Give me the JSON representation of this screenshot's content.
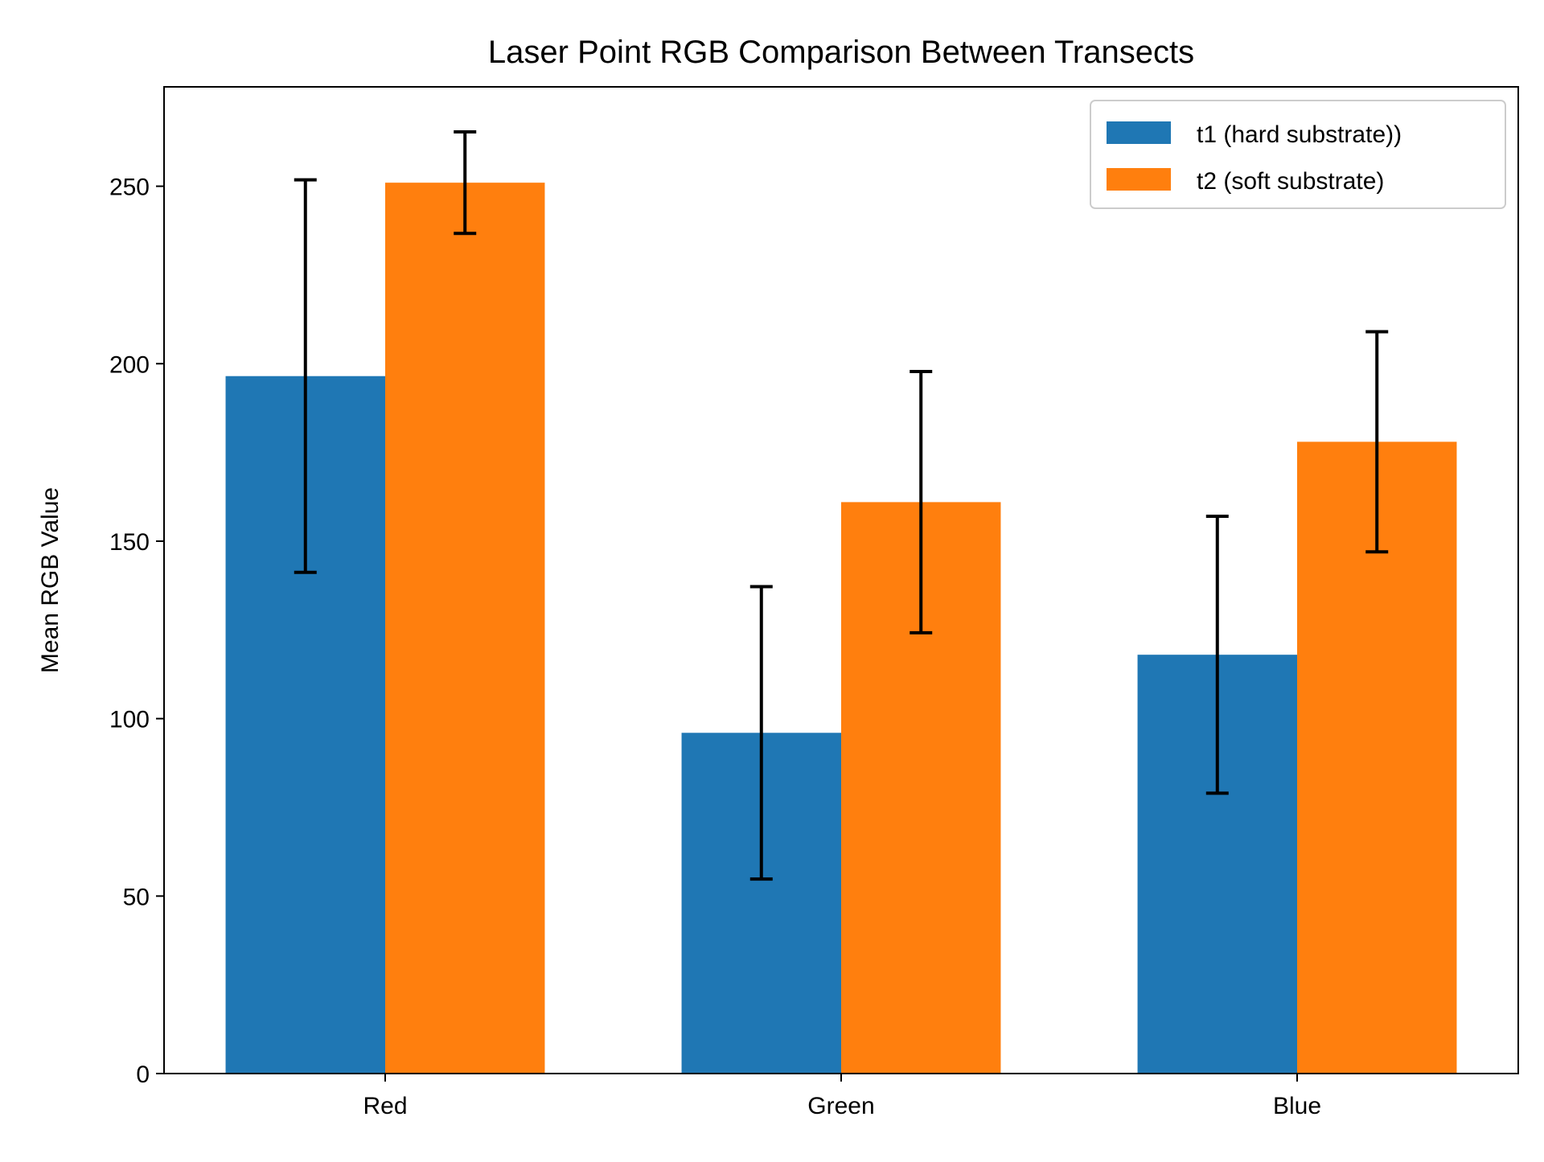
{
  "chart_data": {
    "type": "bar",
    "title": "Laser Point RGB Comparison Between Transects",
    "xlabel": "",
    "ylabel": "Mean RGB Value",
    "categories": [
      "Red",
      "Green",
      "Blue"
    ],
    "ylim": [
      0,
      278
    ],
    "yticks": [
      0,
      50,
      100,
      150,
      200,
      250
    ],
    "grid": false,
    "legend_position": "top-right",
    "series": [
      {
        "name": "t1 (hard substrate))",
        "color": "#1f77b4",
        "values": [
          196.5,
          96.0,
          118.0
        ],
        "errors": [
          55.3,
          41.2,
          39.0
        ]
      },
      {
        "name": "t2 (soft substrate)",
        "color": "#ff7f0e",
        "values": [
          251.0,
          161.0,
          178.0
        ],
        "errors": [
          14.3,
          36.8,
          31.0
        ]
      }
    ]
  }
}
